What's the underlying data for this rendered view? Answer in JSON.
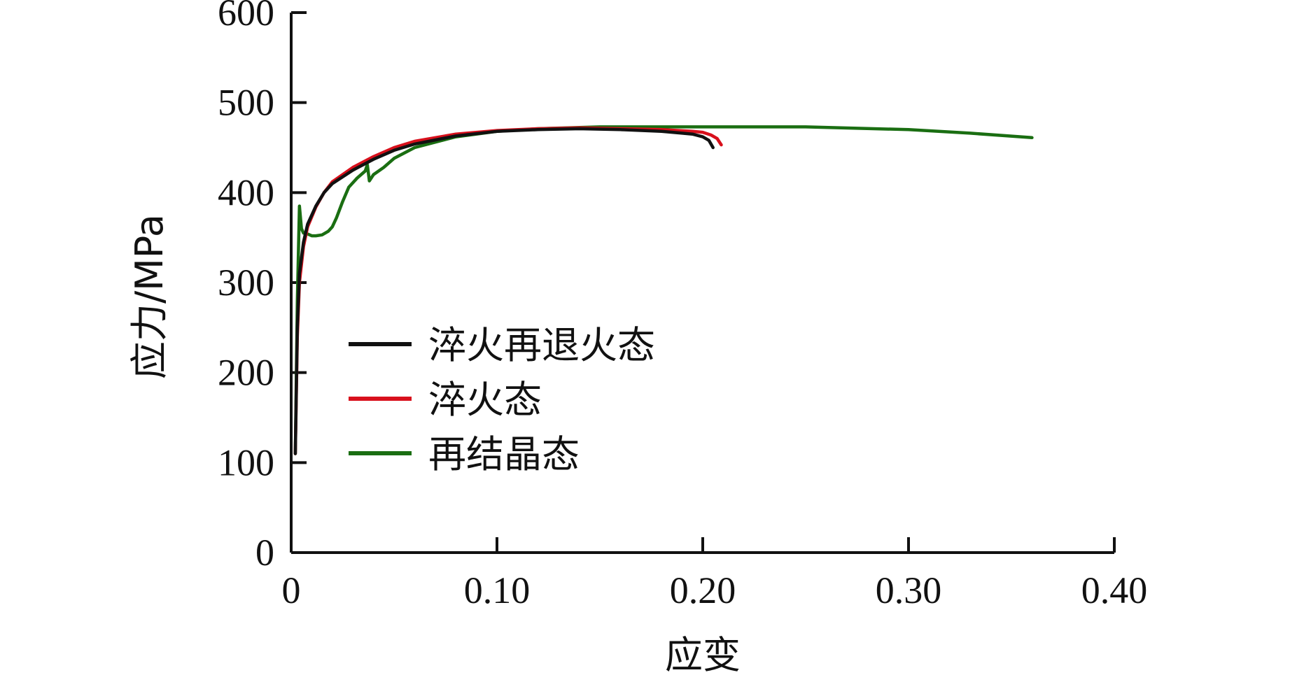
{
  "chart_data": {
    "type": "line",
    "title": "",
    "xlabel": "应变",
    "ylabel": "应力/MPa",
    "xlim": [
      0,
      0.4
    ],
    "ylim": [
      0,
      600
    ],
    "xticks": [
      0,
      0.1,
      0.2,
      0.3,
      0.4
    ],
    "xtick_labels": [
      "0",
      "0.10",
      "0.20",
      "0.30",
      "0.40"
    ],
    "yticks": [
      0,
      100,
      200,
      300,
      400,
      500,
      600
    ],
    "ytick_labels": [
      "0",
      "100",
      "200",
      "300",
      "400",
      "500",
      "600"
    ],
    "grid": false,
    "legend_position": "center-left",
    "series": [
      {
        "name": "淬火再退火态",
        "color": "#111111",
        "x": [
          0.002,
          0.003,
          0.004,
          0.006,
          0.008,
          0.012,
          0.016,
          0.02,
          0.03,
          0.04,
          0.05,
          0.06,
          0.08,
          0.1,
          0.12,
          0.14,
          0.16,
          0.18,
          0.19,
          0.195,
          0.2,
          0.203,
          0.205
        ],
        "y": [
          110,
          250,
          310,
          345,
          365,
          385,
          400,
          410,
          425,
          437,
          447,
          454,
          463,
          468,
          470,
          471,
          470,
          468,
          466,
          465,
          462,
          458,
          450
        ]
      },
      {
        "name": "淬火态",
        "color": "#d8101c",
        "x": [
          0.002,
          0.003,
          0.004,
          0.006,
          0.008,
          0.012,
          0.016,
          0.02,
          0.03,
          0.04,
          0.05,
          0.06,
          0.08,
          0.1,
          0.12,
          0.14,
          0.16,
          0.18,
          0.195,
          0.2,
          0.204,
          0.207,
          0.209
        ],
        "y": [
          110,
          240,
          300,
          340,
          362,
          384,
          400,
          412,
          428,
          440,
          450,
          457,
          465,
          469,
          471,
          472,
          471,
          470,
          468,
          467,
          464,
          460,
          453
        ]
      },
      {
        "name": "再结晶态",
        "color": "#1a6e12",
        "x": [
          0.002,
          0.003,
          0.004,
          0.005,
          0.006,
          0.008,
          0.01,
          0.012,
          0.015,
          0.018,
          0.02,
          0.022,
          0.025,
          0.028,
          0.032,
          0.036,
          0.037,
          0.038,
          0.04,
          0.045,
          0.05,
          0.06,
          0.08,
          0.1,
          0.12,
          0.15,
          0.18,
          0.2,
          0.25,
          0.3,
          0.33,
          0.36
        ],
        "y": [
          110,
          280,
          385,
          360,
          355,
          354,
          352,
          352,
          353,
          357,
          362,
          372,
          390,
          406,
          416,
          424,
          431,
          413,
          420,
          428,
          438,
          450,
          462,
          468,
          471,
          473,
          473,
          473,
          473,
          470,
          466,
          461
        ]
      }
    ]
  }
}
